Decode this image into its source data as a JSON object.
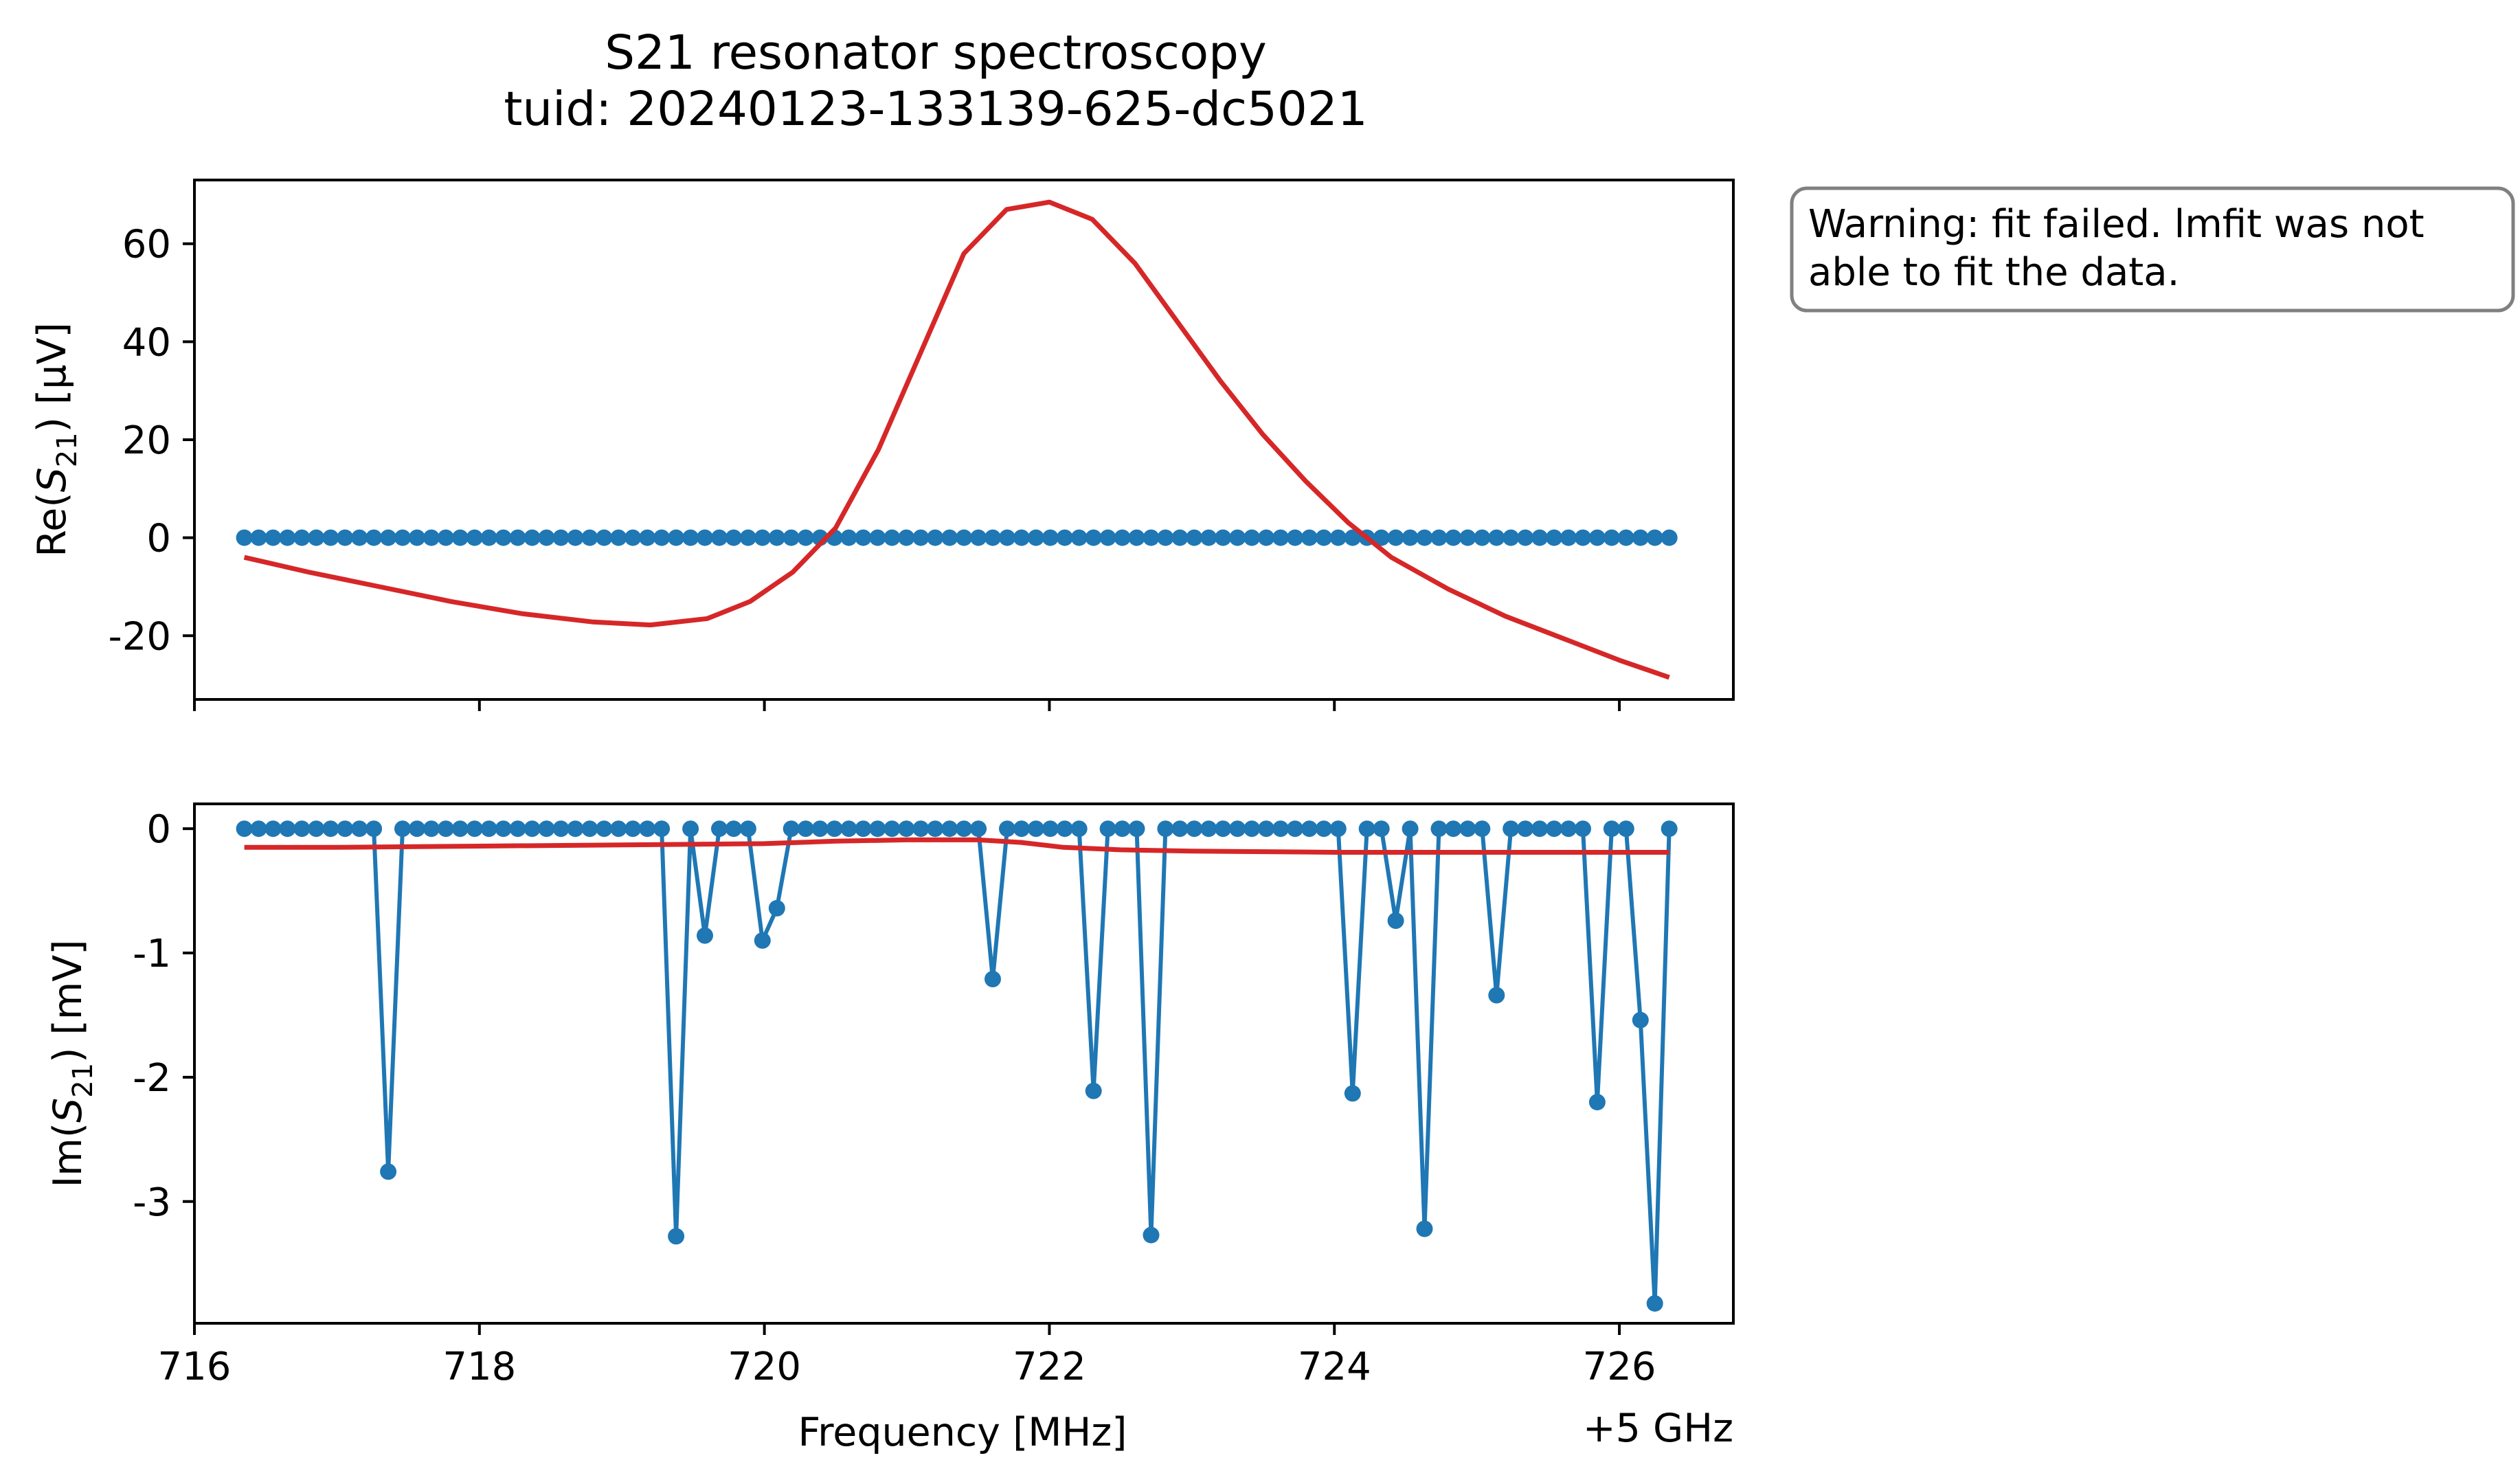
{
  "figure": {
    "title_line1": "S21 resonator spectroscopy",
    "title_line2": "tuid: 20240123-133139-625-dc5021",
    "warning_line1": "Warning: fit failed. lmfit was not",
    "warning_line2": "able to fit the data.",
    "xlabel": "Frequency [MHz]",
    "x_offset_label": "+5 GHz"
  },
  "colors": {
    "data": "#1f77b4",
    "fit": "#d62728",
    "axes": "#000000",
    "warning_border": "#808080"
  },
  "chart_data": [
    {
      "type": "line",
      "panel": "top",
      "ylabel_prefix": "Re(",
      "ylabel_symbol": "S",
      "ylabel_sub": "21",
      "ylabel_suffix": ") [µV]",
      "xlim": [
        716.0,
        726.8
      ],
      "ylim": [
        -33,
        73
      ],
      "x_ticks": [
        716,
        718,
        720,
        722,
        724,
        726
      ],
      "y_ticks": [
        -20,
        0,
        20,
        40,
        60
      ],
      "y_tick_labels": [
        "-20",
        "0",
        "20",
        "40",
        "60"
      ],
      "grid": false,
      "series": [
        {
          "role": "data",
          "style": "markers+line",
          "x_start": 716.35,
          "x_end": 726.35,
          "n_points": 100,
          "y_constant": 0
        },
        {
          "role": "fit",
          "style": "line",
          "x": [
            716.35,
            716.8,
            717.3,
            717.8,
            718.3,
            718.8,
            719.2,
            719.6,
            719.9,
            720.2,
            720.5,
            720.8,
            721.1,
            721.4,
            721.7,
            722.0,
            722.3,
            722.6,
            722.9,
            723.2,
            723.5,
            723.8,
            724.1,
            724.4,
            724.8,
            725.2,
            725.6,
            726.0,
            726.35
          ],
          "y": [
            -4,
            -7,
            -10,
            -13,
            -15.5,
            -17.2,
            -17.8,
            -16.5,
            -13,
            -7,
            2,
            18,
            38,
            58,
            67,
            68.5,
            65,
            56,
            44,
            32,
            21,
            11.5,
            3,
            -4,
            -10.5,
            -16,
            -20.5,
            -25,
            -28.5
          ]
        }
      ]
    },
    {
      "type": "line",
      "panel": "bottom",
      "ylabel_prefix": "Im(",
      "ylabel_symbol": "S",
      "ylabel_sub": "21",
      "ylabel_suffix": ") [mV]",
      "xlim": [
        716.0,
        726.8
      ],
      "ylim": [
        -3.98,
        0.2
      ],
      "x_ticks": [
        716,
        718,
        720,
        722,
        724,
        726
      ],
      "x_tick_labels": [
        "716",
        "718",
        "720",
        "722",
        "724",
        "726"
      ],
      "y_ticks": [
        -3,
        -2,
        -1,
        0
      ],
      "y_tick_labels": [
        "-3",
        "-2",
        "-1",
        "0"
      ],
      "grid": false,
      "series": [
        {
          "role": "data",
          "style": "markers+line",
          "x_start": 716.35,
          "x_end": 726.35,
          "n_points": 100,
          "baseline": 0,
          "dips": [
            {
              "x": 717.4,
              "y": -2.76
            },
            {
              "x": 719.4,
              "y": -3.28
            },
            {
              "x": 719.6,
              "y": -0.86
            },
            {
              "x": 719.95,
              "y": -0.9
            },
            {
              "x": 720.05,
              "y": -0.64
            },
            {
              "x": 721.65,
              "y": -1.21
            },
            {
              "x": 722.35,
              "y": -2.11
            },
            {
              "x": 722.7,
              "y": -3.27
            },
            {
              "x": 724.1,
              "y": -2.13
            },
            {
              "x": 724.45,
              "y": -0.74
            },
            {
              "x": 724.6,
              "y": -3.22
            },
            {
              "x": 725.15,
              "y": -1.34
            },
            {
              "x": 725.8,
              "y": -2.2
            },
            {
              "x": 726.1,
              "y": -1.54
            },
            {
              "x": 726.2,
              "y": -3.82
            }
          ]
        },
        {
          "role": "fit",
          "style": "line",
          "x": [
            716.35,
            717.0,
            718.0,
            719.0,
            720.0,
            720.5,
            721.0,
            721.5,
            721.8,
            722.1,
            722.5,
            723.0,
            724.0,
            725.0,
            726.35
          ],
          "y": [
            -0.15,
            -0.15,
            -0.14,
            -0.13,
            -0.12,
            -0.1,
            -0.09,
            -0.09,
            -0.11,
            -0.15,
            -0.17,
            -0.18,
            -0.19,
            -0.19,
            -0.19
          ]
        }
      ]
    }
  ]
}
